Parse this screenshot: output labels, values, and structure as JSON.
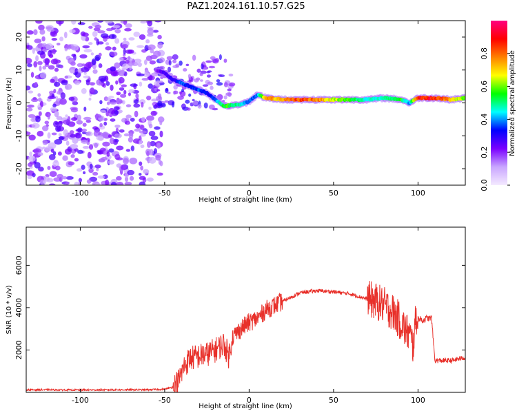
{
  "chart_data": [
    {
      "type": "heatmap",
      "title": "PAZ1.2024.161.10.57.G25",
      "xlabel": "Height of straight line (km)",
      "ylabel": "Frequency (Hz)",
      "xlim": [
        -132,
        128
      ],
      "ylim": [
        -25,
        25
      ],
      "x_ticks": [
        -100,
        -50,
        0,
        50,
        100
      ],
      "y_ticks": [
        -20,
        -10,
        0,
        10,
        20
      ],
      "colorbar": {
        "label": "Normalized spectral amplitude",
        "range": [
          0,
          1
        ],
        "ticks": [
          0.0,
          0.2,
          0.4,
          0.6,
          0.8
        ],
        "colormap": [
          "#f4eaff",
          "#c9a6ff",
          "#7a00ff",
          "#0000ff",
          "#00ffff",
          "#00ff00",
          "#ffff00",
          "#ff8000",
          "#ff0000",
          "#ff0080"
        ]
      },
      "ridge": {
        "x": [
          -55,
          -50,
          -45,
          -40,
          -35,
          -30,
          -25,
          -20,
          -15,
          -12,
          -5,
          0,
          5,
          10,
          20,
          30,
          40,
          50,
          60,
          70,
          80,
          90,
          95,
          100,
          110,
          120,
          128
        ],
        "frequency": [
          10,
          9,
          7,
          6,
          5,
          4,
          3,
          1,
          -1,
          -0.8,
          -0.5,
          0.5,
          2.5,
          1.5,
          1,
          1,
          1,
          1,
          1,
          1,
          1.5,
          1,
          0,
          1.5,
          1.5,
          1,
          1.5
        ],
        "amplitude": [
          0.2,
          0.3,
          0.3,
          0.4,
          0.35,
          0.4,
          0.35,
          0.4,
          0.6,
          0.6,
          0.5,
          0.4,
          0.4,
          0.8,
          0.8,
          0.9,
          0.85,
          0.7,
          0.6,
          0.5,
          0.5,
          0.6,
          0.4,
          0.95,
          0.95,
          0.8,
          0.6
        ]
      },
      "noise_region_x": [
        -132,
        -52
      ]
    },
    {
      "type": "line",
      "xlabel": "Height of straight line (km)",
      "ylabel": "SNR (10 * v/v)",
      "xlim": [
        -132,
        128
      ],
      "ylim": [
        0,
        7800
      ],
      "x_ticks": [
        -100,
        -50,
        0,
        50,
        100
      ],
      "y_ticks": [
        2000,
        4000,
        6000
      ],
      "color": "#e8302a",
      "series": [
        {
          "x": [
            -132,
            -120,
            -100,
            -80,
            -60,
            -50,
            -45,
            -42,
            -40,
            -38,
            -35,
            -30,
            -25,
            -20,
            -15,
            -12,
            -10,
            -5,
            0,
            5,
            10,
            15,
            20,
            25,
            30,
            40,
            50,
            60,
            70,
            75,
            80,
            85,
            88,
            90,
            92,
            95,
            97,
            99,
            100,
            103,
            105,
            108,
            110,
            115,
            120,
            128
          ],
          "values": [
            120,
            120,
            110,
            120,
            120,
            150,
            250,
            500,
            900,
            1300,
            1600,
            1700,
            1800,
            2000,
            2300,
            1700,
            2600,
            3000,
            3300,
            3500,
            3900,
            4100,
            4300,
            4500,
            4700,
            4800,
            4750,
            4650,
            4400,
            4300,
            4100,
            3800,
            3500,
            3300,
            3000,
            2700,
            2200,
            3600,
            3500,
            3400,
            3500,
            3500,
            1500,
            1500,
            1500,
            1650
          ]
        }
      ]
    }
  ]
}
